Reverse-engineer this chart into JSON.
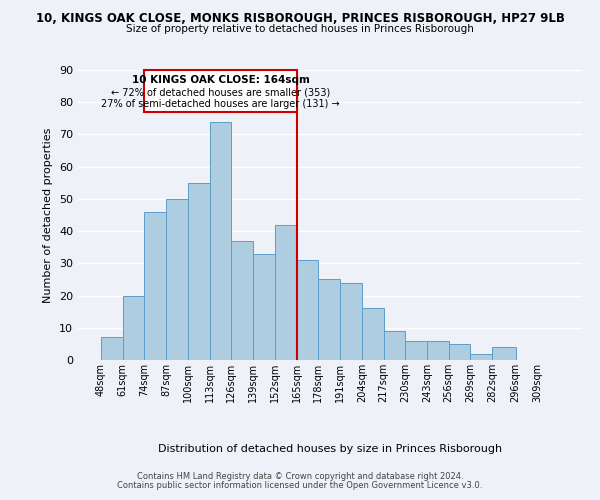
{
  "title_line1": "10, KINGS OAK CLOSE, MONKS RISBOROUGH, PRINCES RISBOROUGH, HP27 9LB",
  "title_line2": "Size of property relative to detached houses in Princes Risborough",
  "xlabel": "Distribution of detached houses by size in Princes Risborough",
  "ylabel": "Number of detached properties",
  "footer_line1": "Contains HM Land Registry data © Crown copyright and database right 2024.",
  "footer_line2": "Contains public sector information licensed under the Open Government Licence v3.0.",
  "bin_labels": [
    "48sqm",
    "61sqm",
    "74sqm",
    "87sqm",
    "100sqm",
    "113sqm",
    "126sqm",
    "139sqm",
    "152sqm",
    "165sqm",
    "178sqm",
    "191sqm",
    "204sqm",
    "217sqm",
    "230sqm",
    "243sqm",
    "256sqm",
    "269sqm",
    "282sqm",
    "296sqm",
    "309sqm"
  ],
  "bin_edges": [
    48,
    61,
    74,
    87,
    100,
    113,
    126,
    139,
    152,
    165,
    178,
    191,
    204,
    217,
    230,
    243,
    256,
    269,
    282,
    296,
    309
  ],
  "counts": [
    7,
    20,
    46,
    50,
    55,
    74,
    37,
    33,
    42,
    31,
    25,
    24,
    16,
    9,
    6,
    6,
    5,
    2,
    4,
    0,
    0
  ],
  "bar_color": "#aecde1",
  "bar_edge_color": "#5b9dc9",
  "reference_line_x": 165,
  "reference_line_color": "#cc0000",
  "annotation_box_edge_color": "#cc0000",
  "annotation_title": "10 KINGS OAK CLOSE: 164sqm",
  "annotation_line1": "← 72% of detached houses are smaller (353)",
  "annotation_line2": "27% of semi-detached houses are larger (131) →",
  "ylim": [
    0,
    90
  ],
  "yticks": [
    0,
    10,
    20,
    30,
    40,
    50,
    60,
    70,
    80,
    90
  ],
  "background_color": "#eef2f8",
  "grid_color": "#ffffff"
}
